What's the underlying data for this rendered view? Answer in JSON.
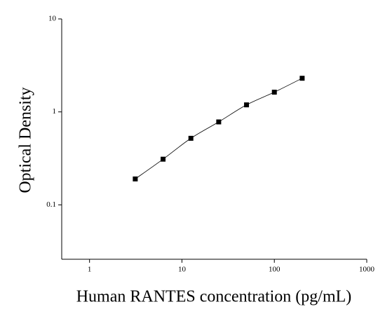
{
  "chart_data": {
    "type": "scatter",
    "x_label": "Human RANTES concentration (pg/mL)",
    "y_label": "Optical Density",
    "x": [
      3.125,
      6.25,
      12.5,
      25,
      50,
      100,
      200
    ],
    "series": [
      {
        "color": "#000000",
        "values": [
          0.19,
          0.31,
          0.52,
          0.78,
          1.19,
          1.63,
          2.3
        ]
      }
    ],
    "xlim": [
      0.5,
      1000
    ],
    "ylim": [
      0.026,
      10
    ],
    "xticks": [
      1,
      10,
      100,
      1000
    ],
    "yticks": [
      0.1,
      1,
      10
    ],
    "xscale": "log",
    "yscale": "log",
    "fit_line": true
  }
}
